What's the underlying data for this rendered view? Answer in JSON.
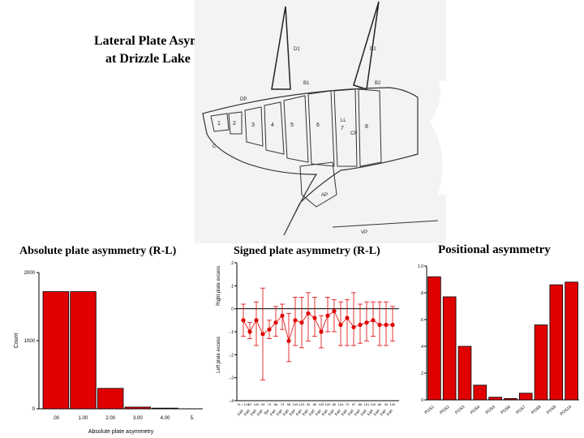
{
  "slide": {
    "title_line1": "Lateral Plate Asymmetry",
    "title_line2": "at Drizzle Lake"
  },
  "figure": {
    "labels": [
      "D1",
      "D2",
      "B1",
      "B2",
      "DP",
      "LL",
      "CP",
      "AP",
      "VP",
      "C",
      "1",
      "2",
      "3",
      "4",
      "5",
      "6",
      "7",
      "8"
    ]
  },
  "colors": {
    "bar": "#e00000",
    "bar_stroke": "#000000",
    "axis": "#000000"
  },
  "chart_data": [
    {
      "type": "bar",
      "title": "Absolute plate asymmetry (R-L)",
      "categories": [
        ".00",
        "1.00",
        "2.00",
        "3.00",
        "4.00",
        "5."
      ],
      "values": [
        1720,
        1720,
        300,
        25,
        10,
        0
      ],
      "ylabel": "Count",
      "xlabel": "Absolute plate asymmetry",
      "ylim": [
        0,
        2000
      ],
      "yticks": [
        "0",
        "1000",
        "2000"
      ]
    },
    {
      "type": "scatter",
      "title": "Signed plate asymmetry (R-L)",
      "ylabel_top": "Right plate excess",
      "ylabel_bottom": "Left plate excess",
      "ylim": [
        -0.4,
        0.2
      ],
      "yticks": [
        "-.4",
        "-.3",
        "-.2",
        "-.1",
        "0",
        ".1",
        ".2"
      ],
      "x_tick_labels": [
        "N = 121",
        "87",
        "100",
        "93",
        "73",
        "58",
        "73",
        "98",
        "100",
        "120",
        "33",
        "80",
        "100",
        "100",
        "80",
        "134",
        "73",
        "97",
        "86",
        "101",
        "100",
        "80",
        "30",
        "100"
      ],
      "x_group_labels": [
        "Fas",
        "Fas",
        "Fas",
        "Fas",
        "Tsx",
        "Fas",
        "Fas",
        "Fas",
        "Fas",
        "Fas",
        "Fas",
        "Fas",
        "Fas",
        "Fas",
        "Fas",
        "Fas",
        "Fas",
        "Fas",
        "Fas",
        "Fas",
        "Fas",
        "Fas",
        "Fas",
        "Fas"
      ],
      "x": [
        1,
        2,
        3,
        4,
        5,
        6,
        7,
        8,
        9,
        10,
        11,
        12,
        13,
        14,
        15,
        16,
        17,
        18,
        19,
        20,
        21,
        22,
        23,
        24
      ],
      "y": [
        -0.05,
        -0.1,
        -0.05,
        -0.11,
        -0.09,
        -0.06,
        -0.03,
        -0.14,
        -0.05,
        -0.06,
        -0.02,
        -0.04,
        -0.1,
        -0.03,
        -0.01,
        -0.07,
        -0.04,
        -0.08,
        -0.07,
        -0.06,
        -0.05,
        -0.07,
        -0.07,
        -0.07
      ],
      "error_low": [
        -0.12,
        -0.13,
        -0.16,
        -0.31,
        -0.13,
        -0.12,
        -0.09,
        -0.23,
        -0.16,
        -0.17,
        -0.14,
        -0.12,
        -0.17,
        -0.1,
        -0.1,
        -0.16,
        -0.16,
        -0.16,
        -0.15,
        -0.14,
        -0.12,
        -0.16,
        -0.16,
        -0.14
      ],
      "error_high": [
        0.02,
        -0.06,
        0.03,
        0.09,
        -0.05,
        0.01,
        0.02,
        -0.02,
        0.05,
        0.05,
        0.07,
        0.05,
        -0.03,
        0.05,
        0.04,
        0.03,
        0.04,
        0.07,
        0.02,
        0.03,
        0.03,
        0.03,
        0.03,
        0.01
      ],
      "reference_line": 0
    },
    {
      "type": "bar",
      "title": "Positional asymmetry",
      "categories": [
        "POS1",
        "POS2",
        "POS3",
        "POS4",
        "POS5",
        "POS6",
        "POS7",
        "POS8",
        "POS9",
        "POS10"
      ],
      "values": [
        0.92,
        0.77,
        0.4,
        0.11,
        0.02,
        0.01,
        0.05,
        0.56,
        0.86,
        0.88
      ],
      "ylim": [
        0,
        1.0
      ],
      "yticks": [
        "0",
        ".2",
        ".4",
        ".6",
        ".8",
        "1.0"
      ]
    }
  ]
}
